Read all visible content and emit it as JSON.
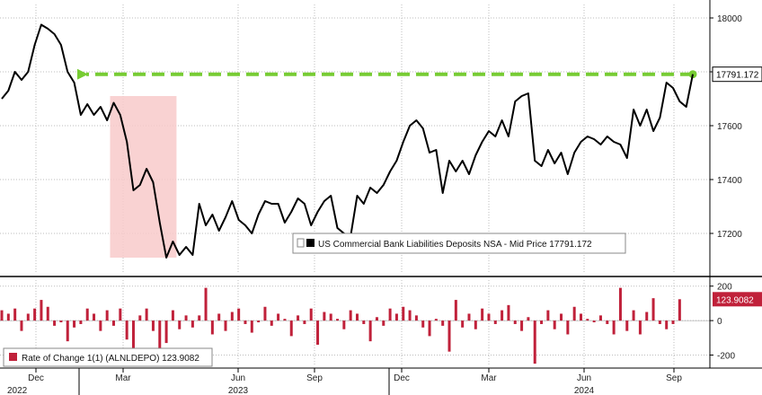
{
  "chart_data": [
    {
      "type": "line",
      "series": [
        {
          "name": "US Commercial Bank Liabilities Deposits NSA - Mid Price",
          "last_value": "17791.172",
          "color": "#000000",
          "values": [
            17700,
            17730,
            17800,
            17770,
            17800,
            17900,
            17975,
            17960,
            17940,
            17900,
            17800,
            17760,
            17640,
            17680,
            17640,
            17670,
            17620,
            17685,
            17640,
            17540,
            17360,
            17380,
            17440,
            17390,
            17240,
            17110,
            17170,
            17120,
            17150,
            17120,
            17310,
            17230,
            17270,
            17210,
            17260,
            17320,
            17250,
            17230,
            17200,
            17270,
            17320,
            17310,
            17310,
            17240,
            17280,
            17330,
            17310,
            17230,
            17280,
            17320,
            17340,
            17220,
            17200,
            17190,
            17340,
            17310,
            17370,
            17350,
            17380,
            17430,
            17470,
            17540,
            17600,
            17620,
            17590,
            17500,
            17510,
            17350,
            17470,
            17430,
            17470,
            17420,
            17490,
            17540,
            17580,
            17560,
            17620,
            17560,
            17690,
            17710,
            17720,
            17470,
            17450,
            17510,
            17460,
            17500,
            17420,
            17500,
            17540,
            17560,
            17550,
            17530,
            17560,
            17540,
            17530,
            17480,
            17660,
            17600,
            17660,
            17580,
            17630,
            17760,
            17740,
            17690,
            17670,
            17791
          ]
        }
      ],
      "y_ticks": [
        "17200",
        "17400",
        "17600",
        "17800",
        "18000"
      ],
      "ylim": [
        17050,
        18050
      ],
      "grid": true,
      "legend_placement": "bottom-right",
      "annotations": {
        "arrow_color": "#77cc33",
        "shade_color": "#f8caca",
        "shade_range_index": [
          17,
          26
        ]
      }
    },
    {
      "type": "bar",
      "series": [
        {
          "name": "Rate of Change 1(1) (ALNLDEPO)",
          "last_value": "123.9082",
          "color": "#c0213a",
          "values": [
            60,
            40,
            70,
            -60,
            40,
            70,
            120,
            80,
            -30,
            -10,
            -120,
            -40,
            -20,
            70,
            40,
            -60,
            60,
            -30,
            70,
            -110,
            -180,
            30,
            70,
            -60,
            -160,
            -130,
            60,
            -50,
            30,
            -40,
            30,
            190,
            -80,
            40,
            -60,
            50,
            70,
            -20,
            -70,
            -10,
            80,
            -30,
            40,
            10,
            -90,
            30,
            -20,
            70,
            -140,
            50,
            40,
            10,
            -50,
            60,
            40,
            -20,
            -120,
            20,
            -30,
            70,
            40,
            80,
            60,
            30,
            -40,
            -90,
            10,
            -30,
            -180,
            120,
            -40,
            40,
            -50,
            70,
            40,
            -20,
            60,
            90,
            -20,
            -60,
            20,
            -250,
            -20,
            60,
            -50,
            40,
            -80,
            80,
            40,
            10,
            -10,
            30,
            -20,
            -80,
            190,
            -60,
            60,
            -80,
            50,
            130,
            -20,
            -50,
            -20,
            124
          ]
        }
      ],
      "y_ticks": [
        "200",
        "0",
        "-200"
      ],
      "ylim": [
        -265,
        235
      ],
      "grid": true,
      "legend_placement": "bottom-left"
    }
  ],
  "x_axis": {
    "month_labels": [
      "Dec",
      "Mar",
      "Jun",
      "Sep",
      "Dec",
      "Mar",
      "Jun",
      "Sep"
    ],
    "year_labels": [
      "2022",
      "2023",
      "2024"
    ]
  }
}
